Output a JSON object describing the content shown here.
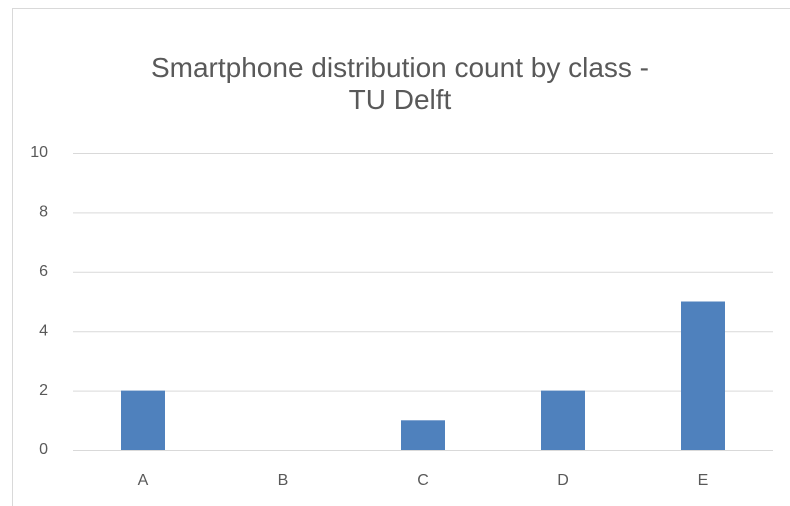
{
  "chart_data": {
    "type": "bar",
    "title": "Smartphone distribution count by class - TU Delft",
    "categories": [
      "A",
      "B",
      "C",
      "D",
      "E"
    ],
    "values": [
      2,
      0,
      1,
      2,
      5
    ],
    "color": "#4f81bd",
    "ylim": [
      0,
      10
    ],
    "yticks": [
      0,
      2,
      4,
      6,
      8,
      10
    ],
    "grid": true
  }
}
